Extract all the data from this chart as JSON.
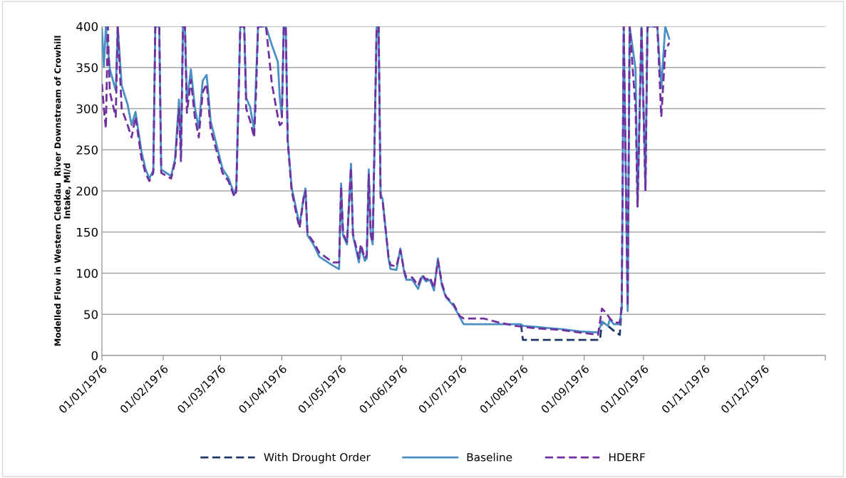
{
  "chart_data": {
    "type": "line",
    "ylabel": "Modelled Flow in Western Cleddau  River Downstream of Crowhill\nIntake, Ml/d",
    "xlim": [
      "1976-01-01",
      "1977-01-01"
    ],
    "xticks": [
      {
        "value": "1976-01-01",
        "label": "01/01/1976"
      },
      {
        "value": "1976-02-01",
        "label": "01/02/1976"
      },
      {
        "value": "1976-03-01",
        "label": "01/03/1976"
      },
      {
        "value": "1976-04-01",
        "label": "01/04/1976"
      },
      {
        "value": "1976-05-01",
        "label": "01/05/1976"
      },
      {
        "value": "1976-06-01",
        "label": "01/06/1976"
      },
      {
        "value": "1976-07-01",
        "label": "01/07/1976"
      },
      {
        "value": "1976-08-01",
        "label": "01/08/1976"
      },
      {
        "value": "1976-09-01",
        "label": "01/09/1976"
      },
      {
        "value": "1976-10-01",
        "label": "01/10/1976"
      },
      {
        "value": "1976-11-01",
        "label": "01/11/1976"
      },
      {
        "value": "1976-12-01",
        "label": "01/12/1976"
      },
      {
        "value": "1977-01-01",
        "label": null
      }
    ],
    "ylim": [
      0,
      400
    ],
    "yticks": [
      0,
      50,
      100,
      150,
      200,
      250,
      300,
      350,
      400
    ],
    "grid": "y",
    "legend": "bottom",
    "marker": "none",
    "series": [
      {
        "name": "With Drought Order",
        "color": "#1f3864",
        "line_style": "dashed",
        "x": [
          "1976-07-31",
          "1976-08-01",
          "1976-09-09",
          "1976-09-10",
          "1976-09-13",
          "1976-09-16",
          "1976-09-19",
          "1976-09-20"
        ],
        "values": [
          38,
          19,
          19,
          41,
          36,
          30,
          25,
          60
        ]
      },
      {
        "name": "Baseline",
        "color": "#4a90c4",
        "line_style": "solid",
        "x": [
          "1976-01-01",
          "1976-01-02",
          "1976-01-03",
          "1976-01-05",
          "1976-01-08",
          "1976-01-09",
          "1976-01-11",
          "1976-01-14",
          "1976-01-16",
          "1976-01-18",
          "1976-01-21",
          "1976-01-23",
          "1976-01-25",
          "1976-01-27",
          "1976-01-28",
          "1976-01-30",
          "1976-01-31",
          "1976-02-05",
          "1976-02-07",
          "1976-02-09",
          "1976-02-10",
          "1976-02-11",
          "1976-02-12",
          "1976-02-13",
          "1976-02-15",
          "1976-02-17",
          "1976-02-19",
          "1976-02-21",
          "1976-02-23",
          "1976-02-25",
          "1976-03-02",
          "1976-03-05",
          "1976-03-08",
          "1976-03-09",
          "1976-03-11",
          "1976-03-13",
          "1976-03-14",
          "1976-03-16",
          "1976-03-18",
          "1976-03-19",
          "1976-03-20",
          "1976-03-24",
          "1976-03-27",
          "1976-03-30",
          "1976-03-31",
          "1976-04-01",
          "1976-04-02",
          "1976-04-03",
          "1976-04-04",
          "1976-04-06",
          "1976-04-09",
          "1976-04-10",
          "1976-04-12",
          "1976-04-13",
          "1976-04-14",
          "1976-04-17",
          "1976-04-20",
          "1976-04-27",
          "1976-04-30",
          "1976-05-01",
          "1976-05-02",
          "1976-05-04",
          "1976-05-06",
          "1976-05-07",
          "1976-05-10",
          "1976-05-11",
          "1976-05-13",
          "1976-05-14",
          "1976-05-15",
          "1976-05-16",
          "1976-05-17",
          "1976-05-19",
          "1976-05-20",
          "1976-05-21",
          "1976-05-22",
          "1976-05-25",
          "1976-05-26",
          "1976-05-29",
          "1976-05-31",
          "1976-06-02",
          "1976-06-03",
          "1976-06-06",
          "1976-06-09",
          "1976-06-11",
          "1976-06-13",
          "1976-06-15",
          "1976-06-17",
          "1976-06-19",
          "1976-06-21",
          "1976-06-23",
          "1976-06-27",
          "1976-06-30",
          "1976-07-02",
          "1976-07-31",
          "1976-08-01",
          "1976-08-21",
          "1976-08-31",
          "1976-09-08",
          "1976-09-10",
          "1976-09-13",
          "1976-09-14",
          "1976-09-16",
          "1976-09-19",
          "1976-09-20",
          "1976-09-21",
          "1976-09-23",
          "1976-09-24",
          "1976-09-27",
          "1976-09-28",
          "1976-09-30",
          "1976-10-02",
          "1976-10-03",
          "1976-10-08",
          "1976-10-10",
          "1976-10-12",
          "1976-10-14"
        ],
        "values": [
          397,
          351,
          400,
          348,
          322,
          400,
          328,
          305,
          280,
          296,
          248,
          227,
          215,
          225,
          400,
          400,
          226,
          218,
          239,
          311,
          245,
          400,
          400,
          308,
          348,
          302,
          276,
          334,
          341,
          285,
          227,
          216,
          196,
          205,
          400,
          400,
          313,
          302,
          274,
          337,
          400,
          400,
          377,
          357,
          313,
          291,
          400,
          400,
          262,
          204,
          170,
          158,
          192,
          203,
          146,
          135,
          120,
          109,
          105,
          209,
          146,
          135,
          233,
          146,
          113,
          132,
          115,
          118,
          226,
          146,
          135,
          400,
          400,
          196,
          190,
          118,
          105,
          104,
          130,
          100,
          92,
          92,
          81,
          96,
          90,
          92,
          79,
          118,
          85,
          71,
          60,
          47,
          38,
          38,
          36,
          32,
          29,
          28,
          41,
          36,
          44,
          38,
          38,
          60,
          400,
          54,
          400,
          348,
          181,
          400,
          204,
          400,
          400,
          325,
          400,
          385
        ]
      },
      {
        "name": "HDERF",
        "color": "#7030a0",
        "line_style": "dashed",
        "x": [
          "1976-01-01",
          "1976-01-02",
          "1976-01-03",
          "1976-01-04",
          "1976-01-05",
          "1976-01-08",
          "1976-01-09",
          "1976-01-11",
          "1976-01-14",
          "1976-01-16",
          "1976-01-18",
          "1976-01-21",
          "1976-01-23",
          "1976-01-25",
          "1976-01-27",
          "1976-01-28",
          "1976-01-30",
          "1976-01-31",
          "1976-02-05",
          "1976-02-07",
          "1976-02-09",
          "1976-02-10",
          "1976-02-11",
          "1976-02-12",
          "1976-02-13",
          "1976-02-15",
          "1976-02-17",
          "1976-02-19",
          "1976-02-21",
          "1976-02-23",
          "1976-02-25",
          "1976-03-02",
          "1976-03-05",
          "1976-03-08",
          "1976-03-09",
          "1976-03-11",
          "1976-03-13",
          "1976-03-14",
          "1976-03-16",
          "1976-03-18",
          "1976-03-19",
          "1976-03-20",
          "1976-03-24",
          "1976-03-27",
          "1976-03-30",
          "1976-03-31",
          "1976-04-01",
          "1976-04-02",
          "1976-04-03",
          "1976-04-04",
          "1976-04-06",
          "1976-04-09",
          "1976-04-10",
          "1976-04-12",
          "1976-04-13",
          "1976-04-14",
          "1976-04-17",
          "1976-04-20",
          "1976-04-27",
          "1976-04-30",
          "1976-05-01",
          "1976-05-02",
          "1976-05-04",
          "1976-05-06",
          "1976-05-07",
          "1976-05-10",
          "1976-05-11",
          "1976-05-13",
          "1976-05-14",
          "1976-05-15",
          "1976-05-16",
          "1976-05-17",
          "1976-05-19",
          "1976-05-20",
          "1976-05-21",
          "1976-05-22",
          "1976-05-25",
          "1976-05-26",
          "1976-05-29",
          "1976-05-31",
          "1976-06-02",
          "1976-06-03",
          "1976-06-06",
          "1976-06-09",
          "1976-06-11",
          "1976-06-13",
          "1976-06-15",
          "1976-06-17",
          "1976-06-19",
          "1976-06-21",
          "1976-06-23",
          "1976-06-27",
          "1976-06-30",
          "1976-07-02",
          "1976-07-05",
          "1976-07-12",
          "1976-07-20",
          "1976-07-28",
          "1976-08-08",
          "1976-08-20",
          "1976-09-02",
          "1976-09-08",
          "1976-09-10",
          "1976-09-12",
          "1976-09-14",
          "1976-09-16",
          "1976-09-19",
          "1976-09-20",
          "1976-09-21",
          "1976-09-23",
          "1976-09-24",
          "1976-09-27",
          "1976-09-28",
          "1976-09-30",
          "1976-10-02",
          "1976-10-03",
          "1976-10-08",
          "1976-10-10",
          "1976-10-12",
          "1976-10-14"
        ],
        "values": [
          330,
          300,
          276,
          400,
          320,
          290,
          400,
          300,
          280,
          265,
          290,
          240,
          222,
          212,
          222,
          400,
          400,
          222,
          215,
          235,
          300,
          235,
          400,
          400,
          295,
          335,
          290,
          265,
          320,
          330,
          275,
          222,
          212,
          193,
          200,
          400,
          400,
          300,
          285,
          265,
          320,
          400,
          400,
          330,
          290,
          280,
          282,
          400,
          400,
          260,
          200,
          165,
          155,
          190,
          200,
          148,
          138,
          125,
          113,
          113,
          205,
          148,
          138,
          228,
          148,
          118,
          135,
          118,
          122,
          220,
          148,
          138,
          400,
          400,
          192,
          188,
          120,
          110,
          108,
          128,
          102,
          95,
          95,
          85,
          98,
          92,
          95,
          82,
          115,
          88,
          72,
          62,
          48,
          45,
          45,
          45,
          40,
          36,
          33,
          31,
          27,
          25,
          57,
          52,
          45,
          40,
          40,
          60,
          400,
          60,
          400,
          300,
          181,
          400,
          200,
          400,
          400,
          290,
          370,
          380
        ]
      }
    ]
  }
}
